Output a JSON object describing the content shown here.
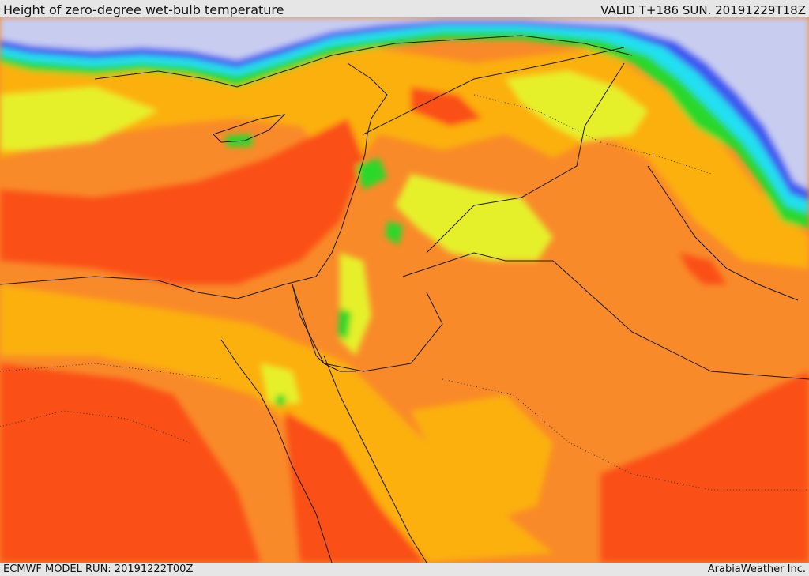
{
  "header": {
    "title": "Height of zero-degree wet-bulb temperature",
    "valid_text": "VALID T+186 SUN. 20191229T18Z"
  },
  "footer": {
    "model_run": "ECMWF MODEL RUN: 20191222T00Z",
    "brand": "ArabiaWeather Inc."
  },
  "map": {
    "region": "Eastern Mediterranean and Middle East",
    "field": "zero-degree wet-bulb height",
    "colors": {
      "very_high": "#fa5014",
      "high": "#f98a2a",
      "medium_high": "#fbb010",
      "medium": "#e6f02a",
      "low": "#b8f024",
      "lower": "#2ad82a",
      "cyan": "#24e0f0",
      "blue": "#3c5af0",
      "very_low": "#c8cdf0"
    }
  }
}
